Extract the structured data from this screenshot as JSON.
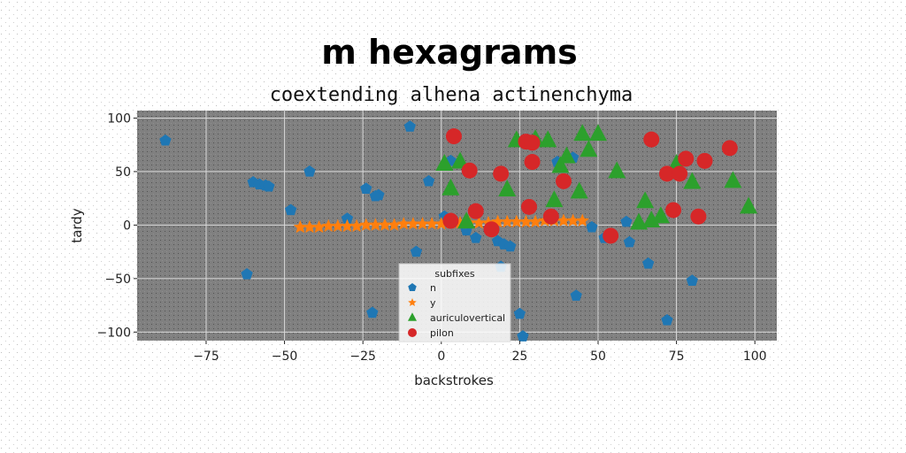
{
  "chart_data": {
    "type": "scatter",
    "title": "m hexagrams",
    "subtitle": "coextending alhena actinenchyma",
    "xlabel": "backstrokes",
    "ylabel": "tardy",
    "xlim": [
      -97,
      107
    ],
    "ylim": [
      -108,
      107
    ],
    "x_ticks": [
      -75,
      -50,
      -25,
      0,
      25,
      50,
      75,
      100
    ],
    "x_tick_labels": [
      "−75",
      "−50",
      "−25",
      "0",
      "25",
      "50",
      "75",
      "100"
    ],
    "y_ticks": [
      -100,
      -50,
      0,
      50,
      100
    ],
    "y_tick_labels": [
      "−100",
      "−50",
      "0",
      "50",
      "100"
    ],
    "grid": true,
    "legend": {
      "title": "subfixes",
      "placement": "lower-center"
    },
    "series": [
      {
        "name": "n",
        "marker": "pentagon",
        "color": "#1f77b4",
        "points": [
          [
            -88,
            79
          ],
          [
            -60,
            40
          ],
          [
            -58,
            38
          ],
          [
            -56,
            37
          ],
          [
            -55,
            36
          ],
          [
            -42,
            50
          ],
          [
            -48,
            14
          ],
          [
            -62,
            -46
          ],
          [
            -30,
            6
          ],
          [
            -24,
            34
          ],
          [
            -20,
            28
          ],
          [
            -21,
            27
          ],
          [
            -10,
            92
          ],
          [
            -8,
            -25
          ],
          [
            -4,
            41
          ],
          [
            -22,
            -82
          ],
          [
            1,
            8
          ],
          [
            3,
            60
          ],
          [
            8,
            -5
          ],
          [
            11,
            -12
          ],
          [
            18,
            -15
          ],
          [
            20,
            -18
          ],
          [
            22,
            -20
          ],
          [
            19,
            -39
          ],
          [
            25,
            -83
          ],
          [
            26,
            -104
          ],
          [
            37,
            59
          ],
          [
            43,
            -66
          ],
          [
            48,
            -2
          ],
          [
            52,
            -12
          ],
          [
            60,
            -16
          ],
          [
            66,
            -36
          ],
          [
            72,
            -89
          ],
          [
            80,
            -52
          ],
          [
            42,
            63
          ],
          [
            59,
            3
          ]
        ]
      },
      {
        "name": "y",
        "marker": "star",
        "color": "#ff7f0e",
        "points": [
          [
            -45,
            -2
          ],
          [
            -42,
            -2
          ],
          [
            -39,
            -2
          ],
          [
            -36,
            -1
          ],
          [
            -33,
            -1
          ],
          [
            -30,
            -1
          ],
          [
            -27,
            -1
          ],
          [
            -24,
            0
          ],
          [
            -21,
            0
          ],
          [
            -18,
            0
          ],
          [
            -15,
            0
          ],
          [
            -12,
            1
          ],
          [
            -9,
            1
          ],
          [
            -6,
            1
          ],
          [
            -3,
            1
          ],
          [
            0,
            1
          ],
          [
            3,
            2
          ],
          [
            6,
            2
          ],
          [
            9,
            2
          ],
          [
            12,
            2
          ],
          [
            15,
            2
          ],
          [
            18,
            3
          ],
          [
            21,
            3
          ],
          [
            24,
            3
          ],
          [
            27,
            3
          ],
          [
            30,
            3
          ],
          [
            33,
            4
          ],
          [
            36,
            4
          ],
          [
            39,
            4
          ],
          [
            42,
            4
          ],
          [
            45,
            4
          ]
        ]
      },
      {
        "name": "auriculovertical",
        "marker": "triangle",
        "color": "#2ca02c",
        "points": [
          [
            1,
            57
          ],
          [
            3,
            34
          ],
          [
            6,
            59
          ],
          [
            8,
            3
          ],
          [
            21,
            33
          ],
          [
            24,
            79
          ],
          [
            30,
            80
          ],
          [
            34,
            79
          ],
          [
            36,
            23
          ],
          [
            38,
            55
          ],
          [
            40,
            64
          ],
          [
            44,
            31
          ],
          [
            45,
            85
          ],
          [
            47,
            70
          ],
          [
            50,
            85
          ],
          [
            56,
            50
          ],
          [
            63,
            2
          ],
          [
            65,
            22
          ],
          [
            67,
            4
          ],
          [
            70,
            8
          ],
          [
            75,
            57
          ],
          [
            80,
            40
          ],
          [
            93,
            41
          ],
          [
            98,
            17
          ]
        ]
      },
      {
        "name": "pilon",
        "marker": "circle",
        "color": "#d62728",
        "points": [
          [
            4,
            83
          ],
          [
            3,
            4
          ],
          [
            9,
            51
          ],
          [
            11,
            13
          ],
          [
            19,
            48
          ],
          [
            16,
            -4
          ],
          [
            27,
            78
          ],
          [
            29,
            77
          ],
          [
            29,
            59
          ],
          [
            28,
            17
          ],
          [
            35,
            8
          ],
          [
            39,
            41
          ],
          [
            54,
            -10
          ],
          [
            67,
            80
          ],
          [
            72,
            48
          ],
          [
            74,
            14
          ],
          [
            76,
            48
          ],
          [
            78,
            62
          ],
          [
            82,
            8
          ],
          [
            84,
            60
          ],
          [
            92,
            72
          ]
        ]
      }
    ]
  }
}
